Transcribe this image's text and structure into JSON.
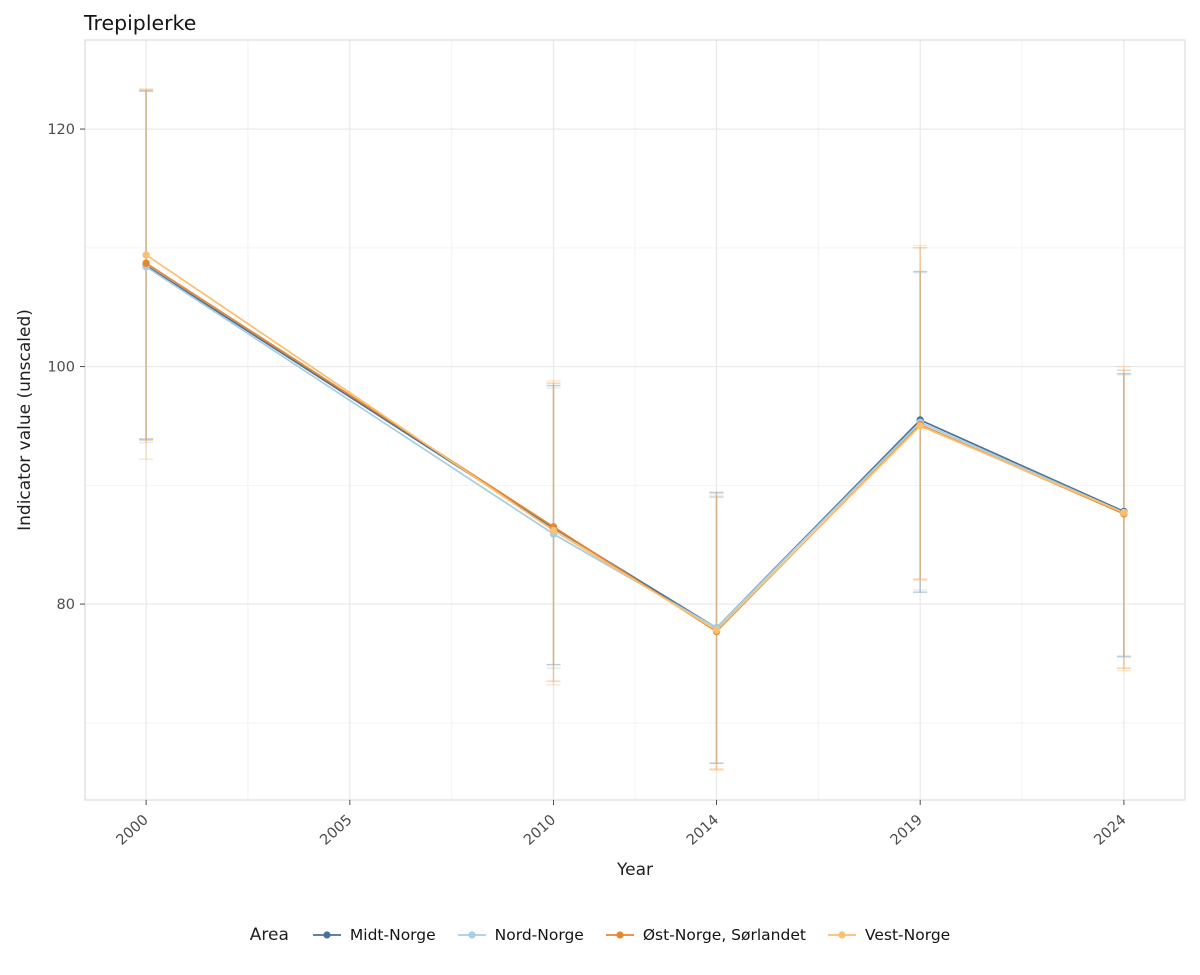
{
  "chart_data": {
    "type": "line",
    "title": "Trepiplerke",
    "xlabel": "Year",
    "ylabel": "Indicator value (unscaled)",
    "legend_title": "Area",
    "legend_position": "bottom",
    "grid": true,
    "x": [
      2000,
      2010,
      2014,
      2019,
      2024
    ],
    "x_ticks": [
      2000,
      2005,
      2010,
      2014,
      2019,
      2024
    ],
    "x_minor": [
      2002.5,
      2007.5,
      2012,
      2016.5,
      2021.5
    ],
    "y_ticks": [
      80,
      100,
      120
    ],
    "y_minor": [
      70,
      90,
      110
    ],
    "xlim": [
      1998.5,
      2025.5
    ],
    "ylim": [
      63.5,
      127.5
    ],
    "error_bar_opacity": 0.35,
    "series": [
      {
        "name": "Midt-Norge",
        "color": "#4a7299",
        "values": [
          108.5,
          86.4,
          78.0,
          95.5,
          87.8
        ],
        "lower": [
          93.9,
          74.9,
          66.6,
          81.0,
          75.6
        ],
        "upper": [
          123.2,
          98.4,
          89.4,
          108.0,
          99.4
        ]
      },
      {
        "name": "Nord-Norge",
        "color": "#a6cee3",
        "values": [
          108.4,
          85.9,
          78.0,
          95.3,
          87.7
        ],
        "lower": [
          93.6,
          74.6,
          66.6,
          81.2,
          75.5
        ],
        "upper": [
          123.2,
          98.2,
          89.1,
          107.9,
          99.3
        ]
      },
      {
        "name": "Øst-Norge, Sørlandet",
        "color": "#e8862d",
        "values": [
          108.7,
          86.5,
          77.7,
          95.1,
          87.6
        ],
        "lower": [
          93.8,
          73.5,
          66.1,
          82.1,
          74.6
        ],
        "upper": [
          123.3,
          98.6,
          89.0,
          110.0,
          99.7
        ]
      },
      {
        "name": "Vest-Norge",
        "color": "#fdbf6f",
        "values": [
          109.4,
          86.2,
          77.8,
          95.0,
          87.7
        ],
        "lower": [
          92.2,
          73.2,
          66.0,
          82.0,
          74.4
        ],
        "upper": [
          123.4,
          98.8,
          89.3,
          110.2,
          100.0
        ]
      }
    ]
  }
}
